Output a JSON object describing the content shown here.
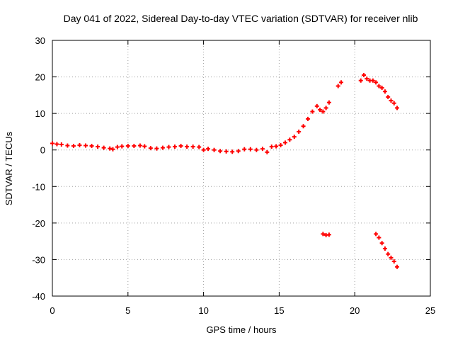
{
  "chart_data": {
    "type": "scatter",
    "title": "Day 041 of 2022, Sidereal Day-to-day VTEC variation (SDTVAR) for receiver nlib",
    "xlabel": "GPS time / hours",
    "ylabel": "SDTVAR / TECUs",
    "xlim": [
      0,
      25
    ],
    "ylim": [
      -40,
      30
    ],
    "xticks": [
      0,
      5,
      10,
      15,
      20,
      25
    ],
    "yticks": [
      30,
      20,
      10,
      0,
      -10,
      -20,
      -30,
      -40
    ],
    "grid": true,
    "marker": "plus",
    "series_color": "#ff0000",
    "series": [
      {
        "name": "SDTVAR",
        "points": [
          [
            0.0,
            1.8
          ],
          [
            0.3,
            1.6
          ],
          [
            0.6,
            1.5
          ],
          [
            1.0,
            1.2
          ],
          [
            1.4,
            1.1
          ],
          [
            1.8,
            1.3
          ],
          [
            2.2,
            1.2
          ],
          [
            2.6,
            1.1
          ],
          [
            3.0,
            0.9
          ],
          [
            3.4,
            0.6
          ],
          [
            3.8,
            0.4
          ],
          [
            4.0,
            0.2
          ],
          [
            4.3,
            0.8
          ],
          [
            4.6,
            1.0
          ],
          [
            5.0,
            1.1
          ],
          [
            5.4,
            1.1
          ],
          [
            5.8,
            1.2
          ],
          [
            6.1,
            1.0
          ],
          [
            6.5,
            0.5
          ],
          [
            6.9,
            0.4
          ],
          [
            7.3,
            0.6
          ],
          [
            7.7,
            0.8
          ],
          [
            8.1,
            0.9
          ],
          [
            8.5,
            1.1
          ],
          [
            8.9,
            0.9
          ],
          [
            9.3,
            0.9
          ],
          [
            9.7,
            0.8
          ],
          [
            10.0,
            0.0
          ],
          [
            10.3,
            0.3
          ],
          [
            10.7,
            0.0
          ],
          [
            11.1,
            -0.3
          ],
          [
            11.5,
            -0.4
          ],
          [
            11.9,
            -0.5
          ],
          [
            12.3,
            -0.3
          ],
          [
            12.7,
            0.2
          ],
          [
            13.1,
            0.2
          ],
          [
            13.5,
            0.0
          ],
          [
            13.9,
            0.3
          ],
          [
            14.2,
            -0.6
          ],
          [
            14.5,
            0.9
          ],
          [
            14.8,
            1.0
          ],
          [
            15.1,
            1.3
          ],
          [
            15.4,
            2.0
          ],
          [
            15.7,
            2.8
          ],
          [
            16.0,
            3.6
          ],
          [
            16.3,
            5.0
          ],
          [
            16.6,
            6.5
          ],
          [
            16.9,
            8.5
          ],
          [
            17.2,
            10.5
          ],
          [
            17.5,
            12.0
          ],
          [
            17.7,
            11.0
          ],
          [
            17.9,
            10.5
          ],
          [
            18.1,
            11.5
          ],
          [
            18.3,
            13.0
          ],
          [
            18.9,
            17.5
          ],
          [
            19.1,
            18.5
          ],
          [
            20.4,
            19.0
          ],
          [
            20.6,
            20.5
          ],
          [
            20.8,
            19.5
          ],
          [
            21.0,
            19.0
          ],
          [
            21.2,
            19.0
          ],
          [
            21.4,
            18.5
          ],
          [
            21.6,
            17.5
          ],
          [
            21.8,
            17.0
          ],
          [
            22.0,
            16.0
          ],
          [
            22.2,
            14.5
          ],
          [
            22.4,
            13.5
          ],
          [
            22.6,
            12.8
          ],
          [
            22.8,
            11.5
          ],
          [
            17.9,
            -23.0
          ],
          [
            18.1,
            -23.3
          ],
          [
            18.3,
            -23.2
          ],
          [
            21.4,
            -23.0
          ],
          [
            21.6,
            -24.0
          ],
          [
            21.8,
            -25.5
          ],
          [
            22.0,
            -27.0
          ],
          [
            22.2,
            -28.5
          ],
          [
            22.4,
            -29.5
          ],
          [
            22.6,
            -30.5
          ],
          [
            22.8,
            -32.0
          ]
        ]
      }
    ]
  }
}
